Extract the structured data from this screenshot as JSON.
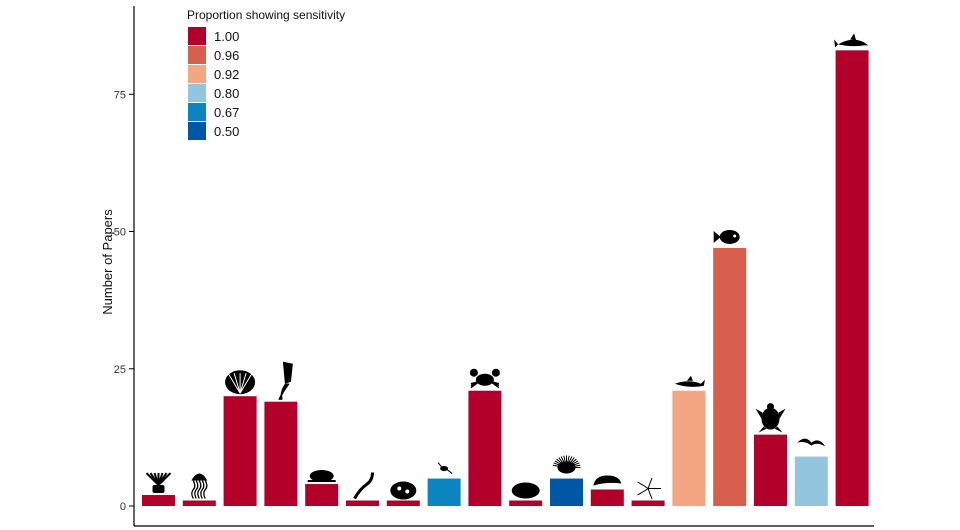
{
  "chart_data": {
    "type": "bar",
    "ylabel": "Number of Papers",
    "xlabel": "",
    "ylim": [
      0,
      86
    ],
    "yticks": [
      0,
      25,
      50,
      75
    ],
    "grid": false,
    "legend": {
      "title": "Proportion showing sensitivity",
      "placement": "top-left",
      "entries": [
        {
          "label": "1.00",
          "color": "#b2002b"
        },
        {
          "label": "0.96",
          "color": "#d6604d"
        },
        {
          "label": "0.92",
          "color": "#f4a582"
        },
        {
          "label": "0.80",
          "color": "#92c5de"
        },
        {
          "label": "0.67",
          "color": "#0b84c0"
        },
        {
          "label": "0.50",
          "color": "#0057a6"
        }
      ]
    },
    "bars": [
      {
        "value": 2,
        "proportion": "1.00",
        "icon": "sea-anemone-icon"
      },
      {
        "value": 1,
        "proportion": "1.00",
        "icon": "jellyfish-icon"
      },
      {
        "value": 20,
        "proportion": "1.00",
        "icon": "clam-shell-icon"
      },
      {
        "value": 19,
        "proportion": "1.00",
        "icon": "squid-icon"
      },
      {
        "value": 4,
        "proportion": "1.00",
        "icon": "snail-icon"
      },
      {
        "value": 1,
        "proportion": "1.00",
        "icon": "worm-icon"
      },
      {
        "value": 1,
        "proportion": "1.00",
        "icon": "coral-icon"
      },
      {
        "value": 5,
        "proportion": "0.67",
        "icon": "copepod-icon"
      },
      {
        "value": 21,
        "proportion": "1.00",
        "icon": "crab-icon"
      },
      {
        "value": 1,
        "proportion": "1.00",
        "icon": "sponge-icon"
      },
      {
        "value": 5,
        "proportion": "0.50",
        "icon": "sea-urchin-icon"
      },
      {
        "value": 3,
        "proportion": "1.00",
        "icon": "sea-cucumber-icon"
      },
      {
        "value": 1,
        "proportion": "1.00",
        "icon": "brittle-star-icon"
      },
      {
        "value": 21,
        "proportion": "0.92",
        "icon": "shark-icon"
      },
      {
        "value": 47,
        "proportion": "0.96",
        "icon": "fish-icon"
      },
      {
        "value": 13,
        "proportion": "1.00",
        "icon": "sea-turtle-icon"
      },
      {
        "value": 9,
        "proportion": "0.80",
        "icon": "seabird-icon"
      },
      {
        "value": 83,
        "proportion": "1.00",
        "icon": "dolphin-icon"
      }
    ]
  }
}
